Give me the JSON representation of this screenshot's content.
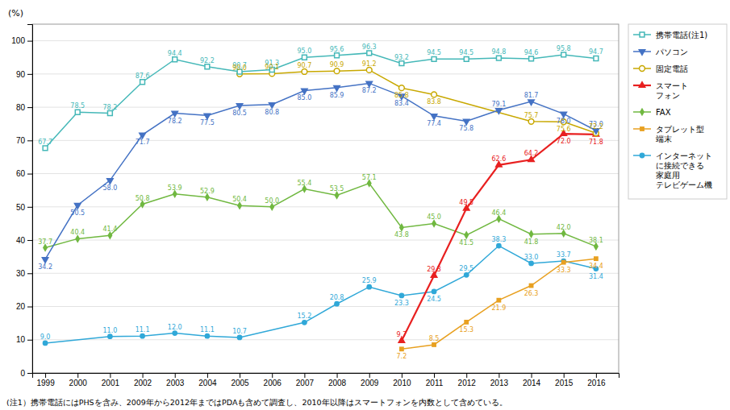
{
  "chart_data": {
    "type": "line",
    "ylabel": "(%)",
    "note": "(注1）携帯電話にはPHSを含み、2009年から2012年まではPDAも含めて調査し、2010年以降はスマートフォンを内数として含めている。",
    "xlim": [
      1998.6,
      2016.7
    ],
    "xticks": [
      1999,
      2000,
      2001,
      2002,
      2003,
      2004,
      2005,
      2006,
      2007,
      2008,
      2009,
      2010,
      2011,
      2012,
      2013,
      2014,
      2015,
      2016
    ],
    "ylim": [
      0,
      105
    ],
    "yticks": [
      0,
      10,
      20,
      30,
      40,
      50,
      60,
      70,
      80,
      90,
      100
    ],
    "grid": true,
    "data_labels": true,
    "series": [
      {
        "name": "携帯電話(注1)",
        "color": "#45b8b8",
        "marker": "square-open",
        "x": [
          1999,
          2000,
          2001,
          2002,
          2003,
          2004,
          2005,
          2006,
          2007,
          2008,
          2009,
          2010,
          2011,
          2012,
          2013,
          2014,
          2015,
          2016
        ],
        "values": [
          67.7,
          78.5,
          78.2,
          87.6,
          94.4,
          92.2,
          90.7,
          91.3,
          95.0,
          95.6,
          96.3,
          93.2,
          94.5,
          94.5,
          94.8,
          94.6,
          95.8,
          94.7
        ]
      },
      {
        "name": "パソコン",
        "color": "#4472c4",
        "marker": "triangle-down",
        "x": [
          1999,
          2000,
          2001,
          2002,
          2003,
          2004,
          2005,
          2006,
          2007,
          2008,
          2009,
          2010,
          2011,
          2012,
          2013,
          2014,
          2015,
          2016
        ],
        "values": [
          34.2,
          50.5,
          58.0,
          71.7,
          78.2,
          77.5,
          80.5,
          80.8,
          85.0,
          85.9,
          87.2,
          83.4,
          77.4,
          75.8,
          79.1,
          81.7,
          78.0,
          73.0
        ]
      },
      {
        "name": "固定電話",
        "color": "#c8a800",
        "marker": "circle-open",
        "x": [
          2005,
          2006,
          2007,
          2008,
          2009,
          2010,
          2011,
          2014,
          2015,
          2016
        ],
        "values": [
          90.0,
          90.1,
          90.7,
          90.9,
          91.2,
          85.8,
          83.8,
          75.7,
          75.6,
          72.2
        ]
      },
      {
        "name": "スマート\nフォン",
        "color": "#e82020",
        "marker": "triangle-up",
        "x": [
          2010,
          2011,
          2012,
          2013,
          2014,
          2015,
          2016
        ],
        "values": [
          9.7,
          29.3,
          49.5,
          62.6,
          64.2,
          72.0,
          71.8
        ]
      },
      {
        "name": "FAX",
        "color": "#70b840",
        "marker": "diamond",
        "x": [
          1999,
          2000,
          2001,
          2002,
          2003,
          2004,
          2005,
          2006,
          2007,
          2008,
          2009,
          2010,
          2011,
          2012,
          2013,
          2014,
          2015,
          2016
        ],
        "values": [
          37.7,
          40.4,
          41.4,
          50.8,
          53.9,
          52.9,
          50.4,
          50.0,
          55.4,
          53.5,
          57.1,
          43.8,
          45.0,
          41.5,
          46.4,
          41.8,
          42.0,
          38.1
        ]
      },
      {
        "name": "タブレット型\n端末",
        "color": "#e8a020",
        "marker": "square",
        "x": [
          2010,
          2011,
          2012,
          2013,
          2014,
          2015,
          2016
        ],
        "values": [
          7.2,
          8.5,
          15.3,
          21.9,
          26.3,
          33.3,
          34.4
        ]
      },
      {
        "name": "インターネット\nに接続できる\n家庭用\nテレビゲーム機",
        "color": "#30a8d8",
        "marker": "circle",
        "x": [
          1999,
          2001,
          2002,
          2003,
          2004,
          2005,
          2007,
          2008,
          2009,
          2010,
          2011,
          2012,
          2013,
          2014,
          2015,
          2016
        ],
        "values": [
          9.0,
          11.0,
          11.1,
          12.0,
          11.1,
          10.7,
          15.2,
          20.8,
          25.9,
          23.3,
          24.5,
          29.5,
          38.3,
          33.0,
          33.7,
          31.4
        ]
      }
    ]
  }
}
